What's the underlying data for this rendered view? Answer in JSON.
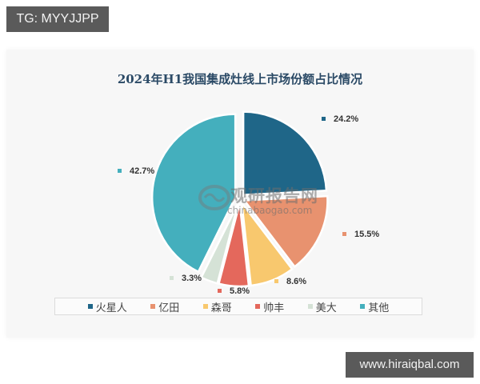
{
  "badges": {
    "top_left": "TG: MYYJJPP",
    "bottom_right": "www.hiraiqbal.com"
  },
  "watermark": {
    "name": "观研报告网",
    "url": "chinabaogao.com"
  },
  "chart_data": {
    "type": "pie",
    "title": "2024年H1我国集成灶线上市场份额占比情况",
    "categories": [
      "火星人",
      "亿田",
      "森哥",
      "帅丰",
      "美大",
      "其他"
    ],
    "values": [
      24.2,
      15.5,
      8.6,
      5.8,
      3.3,
      42.7
    ],
    "labels": [
      "24.2%",
      "15.5%",
      "8.6%",
      "5.8%",
      "3.3%",
      "42.7%"
    ],
    "colors": [
      "#1f6688",
      "#e8926f",
      "#f8c86e",
      "#e4685c",
      "#d5e2d6",
      "#44afbd"
    ],
    "unit": "%",
    "start_angle": "12 o'clock",
    "direction": "clockwise",
    "exploded": true,
    "legend_position": "bottom"
  }
}
